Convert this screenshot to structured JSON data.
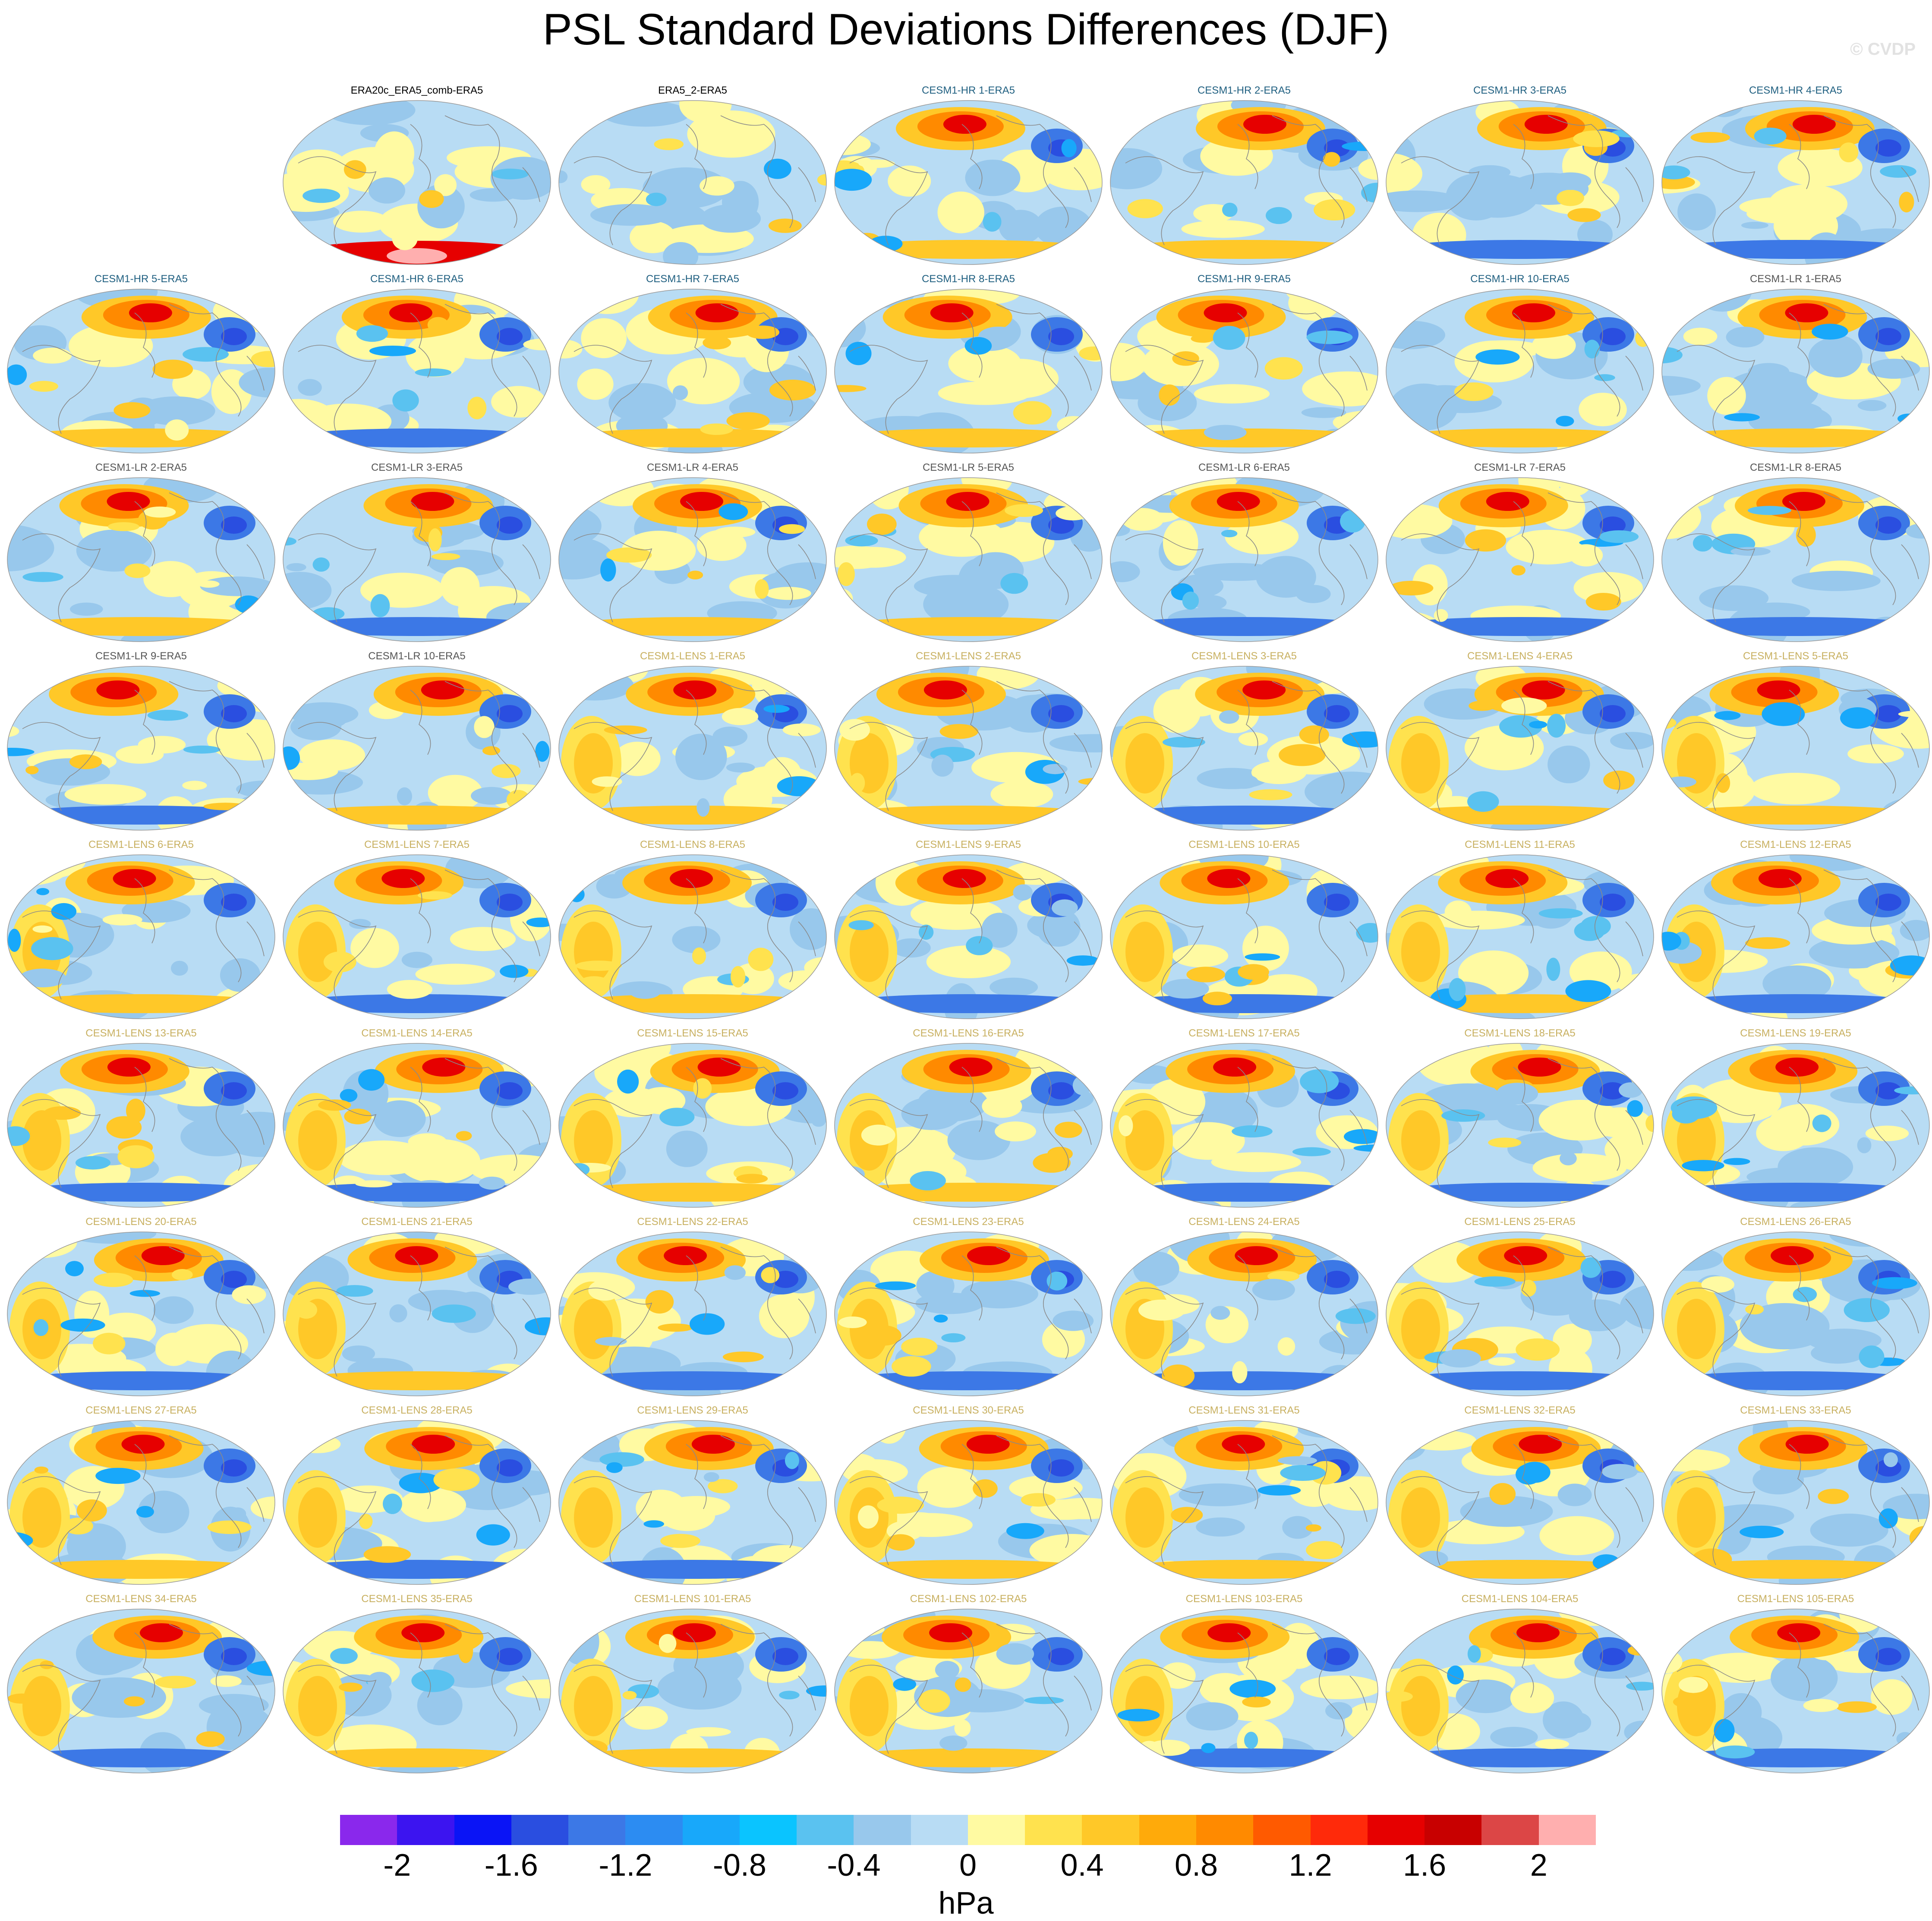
{
  "title": "PSL Standard Deviations Differences (DJF)",
  "credit": "© CVDP",
  "panels": [
    {
      "label": "ERA20c_ERA5_comb-ERA5",
      "group": "obs"
    },
    {
      "label": "ERA5_2-ERA5",
      "group": "obs"
    },
    {
      "label": "CESM1-HR 1-ERA5",
      "group": "hr"
    },
    {
      "label": "CESM1-HR 2-ERA5",
      "group": "hr"
    },
    {
      "label": "CESM1-HR 3-ERA5",
      "group": "hr"
    },
    {
      "label": "CESM1-HR 4-ERA5",
      "group": "hr"
    },
    {
      "label": "CESM1-HR 5-ERA5",
      "group": "hr"
    },
    {
      "label": "CESM1-HR 6-ERA5",
      "group": "hr"
    },
    {
      "label": "CESM1-HR 7-ERA5",
      "group": "hr"
    },
    {
      "label": "CESM1-HR 8-ERA5",
      "group": "hr"
    },
    {
      "label": "CESM1-HR 9-ERA5",
      "group": "hr"
    },
    {
      "label": "CESM1-HR 10-ERA5",
      "group": "hr"
    },
    {
      "label": "CESM1-LR 1-ERA5",
      "group": "lr"
    },
    {
      "label": "CESM1-LR 2-ERA5",
      "group": "lr"
    },
    {
      "label": "CESM1-LR 3-ERA5",
      "group": "lr"
    },
    {
      "label": "CESM1-LR 4-ERA5",
      "group": "lr"
    },
    {
      "label": "CESM1-LR 5-ERA5",
      "group": "lr"
    },
    {
      "label": "CESM1-LR 6-ERA5",
      "group": "lr"
    },
    {
      "label": "CESM1-LR 7-ERA5",
      "group": "lr"
    },
    {
      "label": "CESM1-LR 8-ERA5",
      "group": "lr"
    },
    {
      "label": "CESM1-LR 9-ERA5",
      "group": "lr"
    },
    {
      "label": "CESM1-LR 10-ERA5",
      "group": "lr"
    },
    {
      "label": "CESM1-LENS 1-ERA5",
      "group": "lens"
    },
    {
      "label": "CESM1-LENS 2-ERA5",
      "group": "lens"
    },
    {
      "label": "CESM1-LENS 3-ERA5",
      "group": "lens"
    },
    {
      "label": "CESM1-LENS 4-ERA5",
      "group": "lens"
    },
    {
      "label": "CESM1-LENS 5-ERA5",
      "group": "lens"
    },
    {
      "label": "CESM1-LENS 6-ERA5",
      "group": "lens"
    },
    {
      "label": "CESM1-LENS 7-ERA5",
      "group": "lens"
    },
    {
      "label": "CESM1-LENS 8-ERA5",
      "group": "lens"
    },
    {
      "label": "CESM1-LENS 9-ERA5",
      "group": "lens"
    },
    {
      "label": "CESM1-LENS 10-ERA5",
      "group": "lens"
    },
    {
      "label": "CESM1-LENS 11-ERA5",
      "group": "lens"
    },
    {
      "label": "CESM1-LENS 12-ERA5",
      "group": "lens"
    },
    {
      "label": "CESM1-LENS 13-ERA5",
      "group": "lens"
    },
    {
      "label": "CESM1-LENS 14-ERA5",
      "group": "lens"
    },
    {
      "label": "CESM1-LENS 15-ERA5",
      "group": "lens"
    },
    {
      "label": "CESM1-LENS 16-ERA5",
      "group": "lens"
    },
    {
      "label": "CESM1-LENS 17-ERA5",
      "group": "lens"
    },
    {
      "label": "CESM1-LENS 18-ERA5",
      "group": "lens"
    },
    {
      "label": "CESM1-LENS 19-ERA5",
      "group": "lens"
    },
    {
      "label": "CESM1-LENS 20-ERA5",
      "group": "lens"
    },
    {
      "label": "CESM1-LENS 21-ERA5",
      "group": "lens"
    },
    {
      "label": "CESM1-LENS 22-ERA5",
      "group": "lens"
    },
    {
      "label": "CESM1-LENS 23-ERA5",
      "group": "lens"
    },
    {
      "label": "CESM1-LENS 24-ERA5",
      "group": "lens"
    },
    {
      "label": "CESM1-LENS 25-ERA5",
      "group": "lens"
    },
    {
      "label": "CESM1-LENS 26-ERA5",
      "group": "lens"
    },
    {
      "label": "CESM1-LENS 27-ERA5",
      "group": "lens"
    },
    {
      "label": "CESM1-LENS 28-ERA5",
      "group": "lens"
    },
    {
      "label": "CESM1-LENS 29-ERA5",
      "group": "lens"
    },
    {
      "label": "CESM1-LENS 30-ERA5",
      "group": "lens"
    },
    {
      "label": "CESM1-LENS 31-ERA5",
      "group": "lens"
    },
    {
      "label": "CESM1-LENS 32-ERA5",
      "group": "lens"
    },
    {
      "label": "CESM1-LENS 33-ERA5",
      "group": "lens"
    },
    {
      "label": "CESM1-LENS 34-ERA5",
      "group": "lens"
    },
    {
      "label": "CESM1-LENS 35-ERA5",
      "group": "lens"
    },
    {
      "label": "CESM1-LENS 101-ERA5",
      "group": "lens"
    },
    {
      "label": "CESM1-LENS 102-ERA5",
      "group": "lens"
    },
    {
      "label": "CESM1-LENS 103-ERA5",
      "group": "lens"
    },
    {
      "label": "CESM1-LENS 104-ERA5",
      "group": "lens"
    },
    {
      "label": "CESM1-LENS 105-ERA5",
      "group": "lens"
    }
  ],
  "group_colors": {
    "obs": "#000000",
    "hr": "#1f5f80",
    "lr": "#555555",
    "lens": "#c8b060"
  },
  "colorbar": {
    "colors": [
      "#8a28ec",
      "#3c14f0",
      "#0a14f6",
      "#2a4ee0",
      "#3c78e6",
      "#2c8cf2",
      "#18a8fa",
      "#0ac4ff",
      "#5ac2f0",
      "#98c8ec",
      "#b8dcf4",
      "#fffaa2",
      "#ffe24e",
      "#ffc828",
      "#ffaa0a",
      "#ff8a00",
      "#ff5a00",
      "#ff2a0a",
      "#e60000",
      "#c80000",
      "#dc4646",
      "#ffafaf"
    ],
    "tick_labels": [
      "-2",
      "-1.6",
      "-1.2",
      "-0.8",
      "-0.4",
      "0",
      "0.4",
      "0.8",
      "1.2",
      "1.6",
      "2"
    ],
    "units": "hPa"
  }
}
